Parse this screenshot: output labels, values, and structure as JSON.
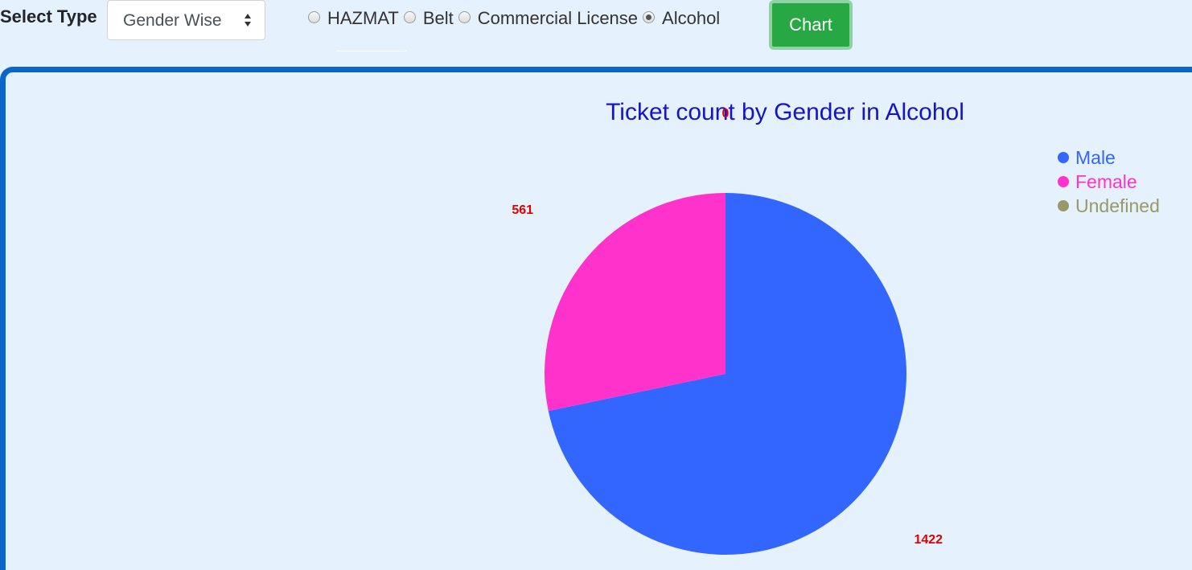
{
  "filter": {
    "select_label": "Select Type",
    "select_value": "Gender Wise",
    "radios": [
      {
        "label": "HAZMAT",
        "checked": false
      },
      {
        "label": "Belt",
        "checked": false
      },
      {
        "label": "Commercial License",
        "checked": false
      },
      {
        "label": "Alcohol",
        "checked": true
      }
    ],
    "chart_button_label": "Chart"
  },
  "chart_data": {
    "type": "pie",
    "title": "Ticket count by Gender in Alcohol",
    "legend_position": "top-right",
    "slices": [
      {
        "label": "Male",
        "value": 1422,
        "color": "#3366ff"
      },
      {
        "label": "Female",
        "value": 561,
        "color": "#ff33cc"
      },
      {
        "label": "Undefined",
        "value": 0,
        "color": "#999966"
      }
    ]
  }
}
